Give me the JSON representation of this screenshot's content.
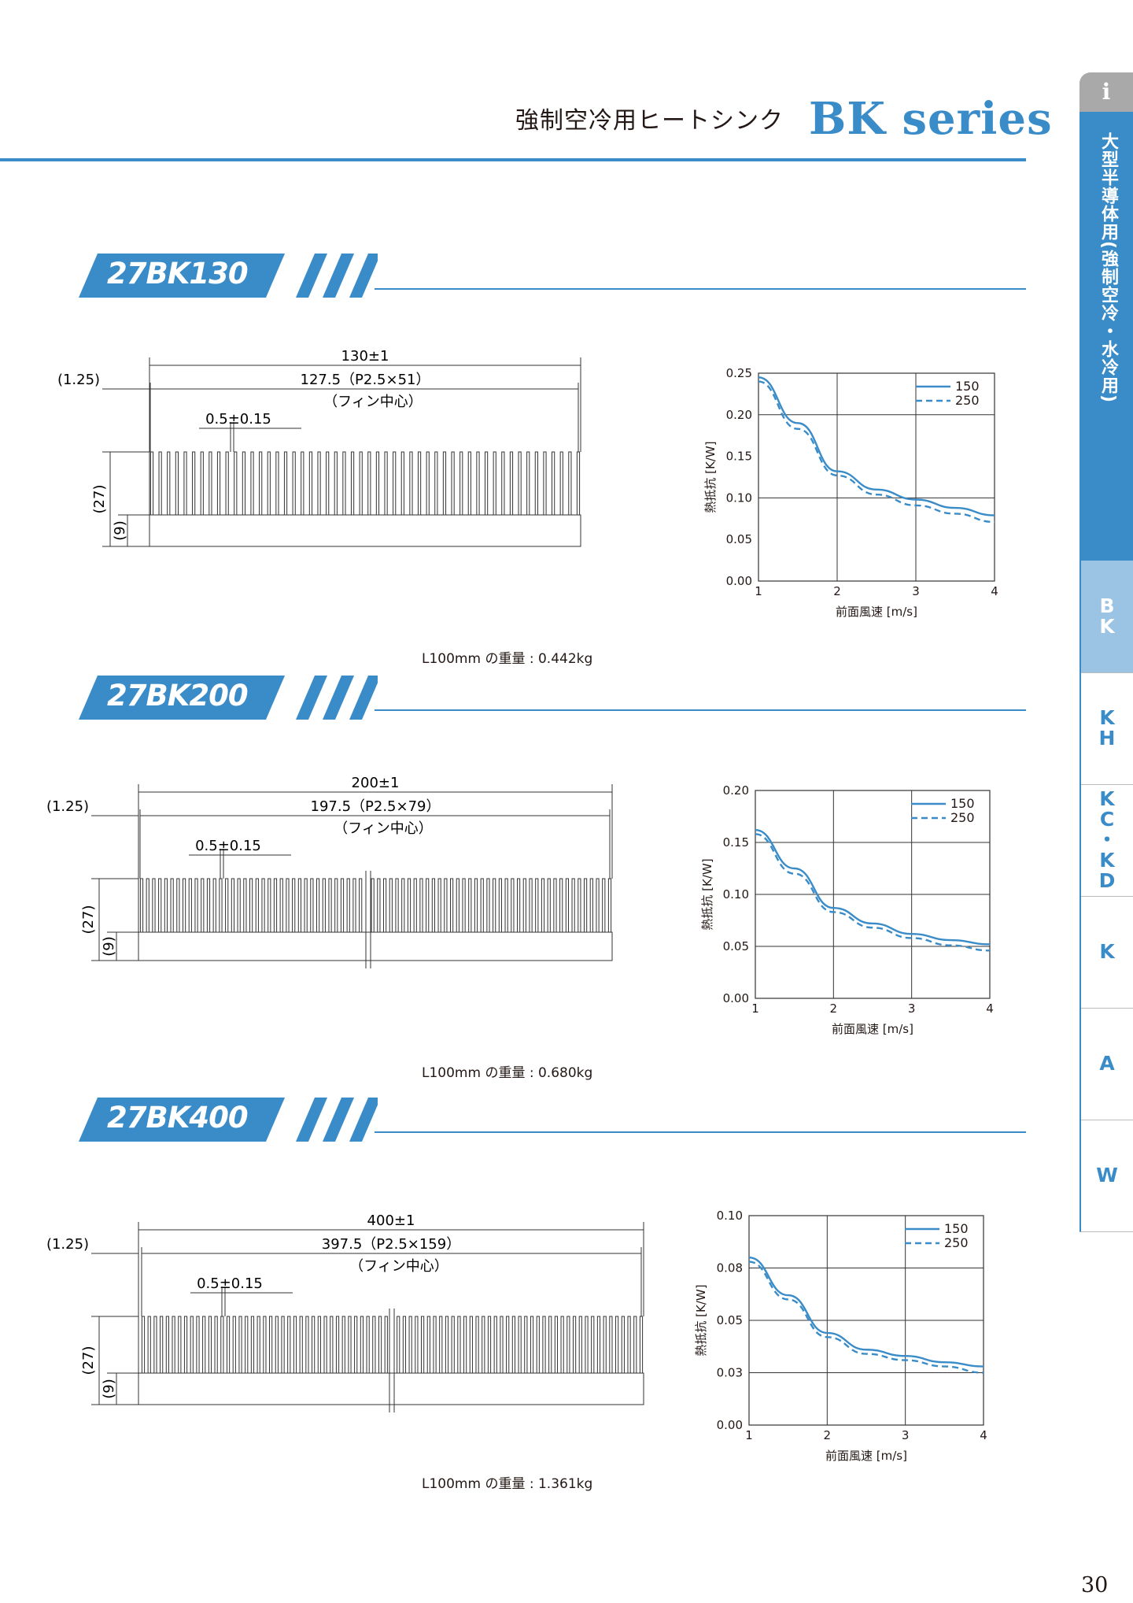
{
  "header": {
    "title": "強制空冷用ヒートシンク",
    "series": "BK series"
  },
  "side_tabs": {
    "info_icon": "i",
    "category": "大型半導体用(強制空冷・水冷用)",
    "items": [
      {
        "label": "B\nK",
        "active": true
      },
      {
        "label": "K\nH",
        "active": false
      },
      {
        "label": "K\nC\n・\nK\nD",
        "active": false
      },
      {
        "label": "K",
        "active": false
      },
      {
        "label": "A",
        "active": false
      },
      {
        "label": "W",
        "active": false
      }
    ]
  },
  "colors": {
    "accent": "#3a8cc8",
    "tab_active": "#9bc3e4",
    "tab_info": "#a9a9a9"
  },
  "sections": [
    {
      "title": "27BK130",
      "dims": {
        "overall": "130±1",
        "pitch": "127.5（P2.5×51）",
        "fin_center": "（フィン中心）",
        "fin_thickness": "0.5±0.15",
        "edge": "(1.25)",
        "height": "(27)",
        "base": "(9)"
      },
      "fin_count": 52,
      "weight": "L100mm の重量 : 0.442kg"
    },
    {
      "title": "27BK200",
      "dims": {
        "overall": "200±1",
        "pitch": "197.5（P2.5×79）",
        "fin_center": "（フィン中心）",
        "fin_thickness": "0.5±0.15",
        "edge": "(1.25)",
        "height": "(27)",
        "base": "(9)"
      },
      "fin_count": 80,
      "weight": "L100mm の重量 : 0.680kg"
    },
    {
      "title": "27BK400",
      "dims": {
        "overall": "400±1",
        "pitch": "397.5（P2.5×159）",
        "fin_center": "（フィン中心）",
        "fin_thickness": "0.5±0.15",
        "edge": "(1.25)",
        "height": "(27)",
        "base": "(9)"
      },
      "fin_count": 160,
      "weight": "L100mm の重量 : 1.361kg"
    }
  ],
  "chart_data": [
    {
      "type": "line",
      "xlabel": "前面風速 [m/s]",
      "ylabel": "熱抵抗 [K/W]",
      "xlim": [
        1,
        4
      ],
      "ylim": [
        0,
        0.25
      ],
      "xticks": [
        "1",
        "2",
        "3",
        "4"
      ],
      "yticks": [
        "0.00",
        "0.05",
        "0.10",
        "0.15",
        "0.20",
        "0.25"
      ],
      "grid": true,
      "legend": "top-right",
      "x": [
        1,
        1.5,
        2,
        2.5,
        3,
        3.5,
        4
      ],
      "series": [
        {
          "name": "150",
          "style": "solid",
          "values": [
            0.245,
            0.19,
            0.132,
            0.11,
            0.098,
            0.088,
            0.079
          ]
        },
        {
          "name": "250",
          "style": "dashed",
          "values": [
            0.24,
            0.183,
            0.127,
            0.104,
            0.091,
            0.081,
            0.071
          ]
        }
      ]
    },
    {
      "type": "line",
      "xlabel": "前面風速 [m/s]",
      "ylabel": "熱抵抗 [K/W]",
      "xlim": [
        1,
        4
      ],
      "ylim": [
        0,
        0.2
      ],
      "xticks": [
        "1",
        "2",
        "3",
        "4"
      ],
      "yticks": [
        "0.00",
        "0.05",
        "0.10",
        "0.15",
        "0.20"
      ],
      "grid": true,
      "legend": "top-right",
      "x": [
        1,
        1.5,
        2,
        2.5,
        3,
        3.5,
        4
      ],
      "series": [
        {
          "name": "150",
          "style": "solid",
          "values": [
            0.162,
            0.125,
            0.087,
            0.072,
            0.062,
            0.056,
            0.052
          ]
        },
        {
          "name": "250",
          "style": "dashed",
          "values": [
            0.158,
            0.12,
            0.083,
            0.068,
            0.058,
            0.051,
            0.046
          ]
        }
      ]
    },
    {
      "type": "line",
      "xlabel": "前面風速 [m/s]",
      "ylabel": "熱抵抗 [K/W]",
      "xlim": [
        1,
        4
      ],
      "ylim": [
        0,
        0.1
      ],
      "xticks": [
        "1",
        "2",
        "3",
        "4"
      ],
      "yticks": [
        "0.00",
        "0.03",
        "0.05",
        "0.08",
        "0.10"
      ],
      "grid": true,
      "legend": "top-right",
      "x": [
        1,
        1.5,
        2,
        2.5,
        3,
        3.5,
        4
      ],
      "series": [
        {
          "name": "150",
          "style": "solid",
          "values": [
            0.08,
            0.062,
            0.044,
            0.036,
            0.033,
            0.03,
            0.028
          ]
        },
        {
          "name": "250",
          "style": "dashed",
          "values": [
            0.078,
            0.06,
            0.042,
            0.034,
            0.031,
            0.028,
            0.025
          ]
        }
      ]
    }
  ],
  "page_number": "30"
}
